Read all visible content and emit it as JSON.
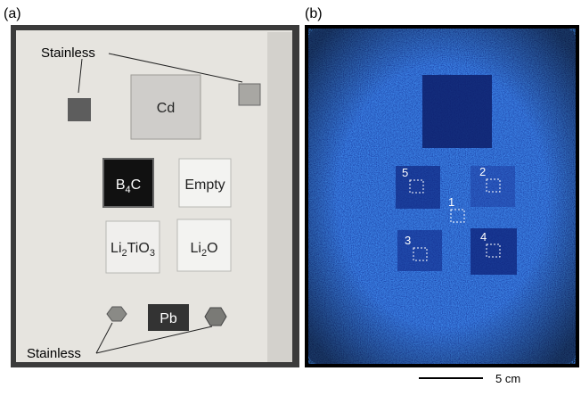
{
  "panel_a": {
    "label": "(a)",
    "stainless_top": "Stainless",
    "stainless_bottom": "Stainless",
    "samples": [
      {
        "parts": [
          "Cd"
        ]
      },
      {
        "parts": [
          "B",
          "4",
          "C"
        ]
      },
      {
        "parts": [
          "Empty"
        ]
      },
      {
        "parts": [
          "Li",
          "2",
          "TiO",
          "3"
        ]
      },
      {
        "parts": [
          "Li",
          "2",
          "O"
        ]
      },
      {
        "parts": [
          "Pb"
        ]
      }
    ]
  },
  "panel_b": {
    "label": "(b)",
    "markers": [
      "5",
      "2",
      "1",
      "3",
      "4"
    ],
    "scale_bar": "5 cm"
  }
}
